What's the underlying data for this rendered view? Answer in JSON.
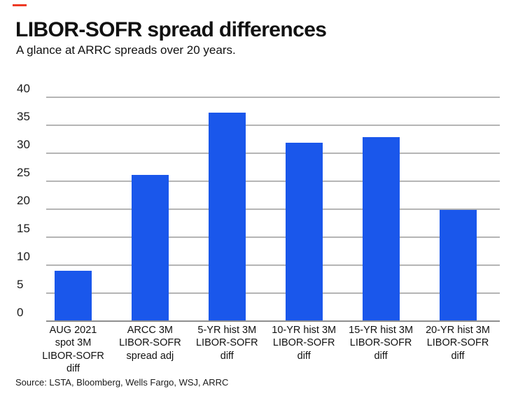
{
  "brand": {
    "accent_color": "#ee3a24"
  },
  "header": {
    "title": "LIBOR-SOFR spread differences",
    "subtitle": "A glance at ARRC spreads over 20 years."
  },
  "footer": {
    "source": "Source: LSTA, Bloomberg, Wells Fargo, WSJ, ARRC"
  },
  "chart_data": {
    "type": "bar",
    "title": "LIBOR-SOFR spread differences",
    "subtitle": "A glance at ARRC spreads over 20 years.",
    "categories": [
      "AUG 2021\nspot 3M\nLIBOR-SOFR\ndiff",
      "ARCC 3M\nLIBOR-SOFR\nspread adj",
      "5-YR hist 3M\nLIBOR-SOFR\ndiff",
      "10-YR hist 3M\nLIBOR-SOFR\ndiff",
      "15-YR hist 3M\nLIBOR-SOFR\ndiff",
      "20-YR hist 3M\nLIBOR-SOFR\ndiff"
    ],
    "values": [
      9.0,
      26.1,
      37.2,
      31.8,
      32.9,
      19.8
    ],
    "xlabel": "",
    "ylabel": "",
    "ylim": [
      0,
      40
    ],
    "yticks": [
      40,
      35,
      30,
      25,
      20,
      15,
      10,
      5,
      0
    ],
    "grid": true,
    "legend": false,
    "bar_color": "#1a57eb",
    "gridline_color": "#b5b5b5",
    "source": "Source: LSTA, Bloomberg, Wells Fargo, WSJ, ARRC"
  }
}
